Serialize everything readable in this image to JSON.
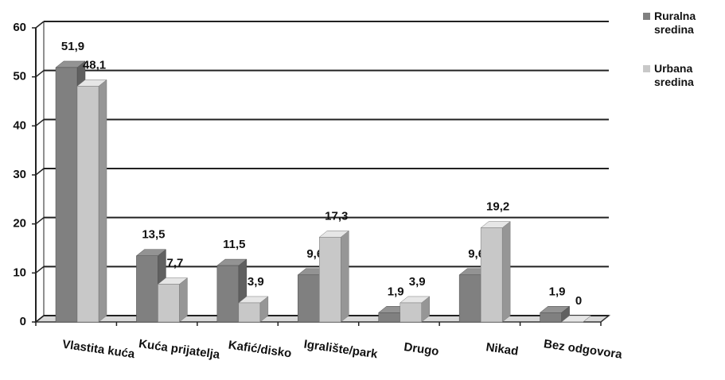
{
  "chart_data": {
    "type": "bar3d",
    "categories": [
      "Vlastita kuća",
      "Kuća prijatelja",
      "Kafić/disko",
      "Igralište/park",
      "Drugo",
      "Nikad",
      "Bez odgovora"
    ],
    "series": [
      {
        "name": "Ruralna sredina",
        "color": "#808080",
        "values": [
          51.9,
          13.5,
          11.5,
          9.6,
          1.9,
          9.6,
          1.9
        ],
        "value_labels": [
          "51,9",
          "13,5",
          "11,5",
          "9,6",
          "1,9",
          "9,6",
          "1,9"
        ]
      },
      {
        "name": "Urbana sredina",
        "color": "#c8c8c8",
        "values": [
          48.1,
          7.7,
          3.9,
          17.3,
          3.9,
          19.2,
          0
        ],
        "value_labels": [
          "48,1",
          "7,7",
          "3,9",
          "17,3",
          "3,9",
          "19,2",
          "0"
        ]
      }
    ],
    "ylim": [
      0,
      60
    ],
    "yticks": [
      0,
      10,
      20,
      30,
      40,
      50,
      60
    ],
    "grid": true,
    "legend": "top-right"
  }
}
